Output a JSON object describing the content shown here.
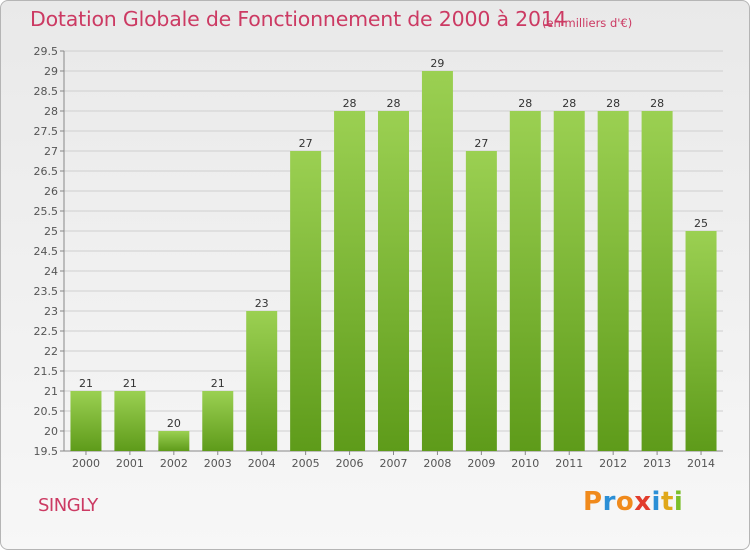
{
  "header": {
    "title": "Dotation Globale de Fonctionnement de 2000 à 2014",
    "unit_note": "(en milliers d'€)"
  },
  "footer": {
    "commune_name": "SINGLY",
    "logo_letters": [
      "P",
      "r",
      "o",
      "x",
      "i",
      "t",
      "i"
    ]
  },
  "colors": {
    "title": "#cc3a63",
    "bar_top": "#9bd052",
    "bar_bottom": "#5e9b1a",
    "grid": "#cfcfcf",
    "logo": [
      "#f08a1c",
      "#2b8fd6",
      "#f08a1c",
      "#e23c2c",
      "#2b8fd6",
      "#e0a81a",
      "#7bbf2a"
    ]
  },
  "chart_data": {
    "type": "bar",
    "title": "Dotation Globale de Fonctionnement de 2000 à 2014",
    "xlabel": "",
    "ylabel": "",
    "categories": [
      "2000",
      "2001",
      "2002",
      "2003",
      "2004",
      "2005",
      "2006",
      "2007",
      "2008",
      "2009",
      "2010",
      "2011",
      "2012",
      "2013",
      "2014"
    ],
    "values": [
      21,
      21,
      20,
      21,
      23,
      27,
      28,
      28,
      29,
      27,
      28,
      28,
      28,
      28,
      25
    ],
    "ylim": [
      19.5,
      29.5
    ],
    "yticks": [
      "19.5",
      "20",
      "20.5",
      "21",
      "21.5",
      "22",
      "22.5",
      "23",
      "23.5",
      "24",
      "24.5",
      "25",
      "25.5",
      "26",
      "26.5",
      "27",
      "27.5",
      "28",
      "28.5",
      "29",
      "29.5"
    ],
    "grid": true
  }
}
